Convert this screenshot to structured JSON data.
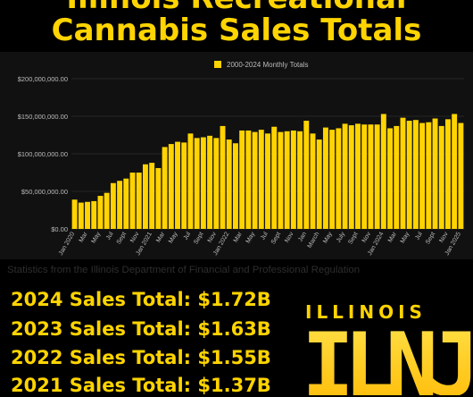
{
  "page": {
    "title_line1": "Illinois Recreational",
    "title_line2": "Cannabis Sales Totals",
    "source_note": "Statistics from the Illinois Department of Financial and Professional Regulation",
    "totals": [
      "2024 Sales Total: $1.72B",
      "2023 Sales Total: $1.63B",
      "2022 Sales Total: $1.55B",
      "2021 Sales Total: $1.37B"
    ],
    "logo": {
      "word": "ILLINOIS",
      "letters": "ILNJ"
    }
  },
  "colors": {
    "accent": "#FFD400",
    "background": "#000000",
    "panel": "#111111",
    "grid": "#3a3a3a",
    "text_muted": "#bbbbbb"
  },
  "chart_data": {
    "type": "bar",
    "legend": {
      "label": "2000-2024 Monthly Totals",
      "position": "top"
    },
    "ylim": [
      0,
      200000000
    ],
    "yticks": [
      {
        "value": 0,
        "label": "$0.00"
      },
      {
        "value": 50000000,
        "label": "$50,000,000.00"
      },
      {
        "value": 100000000,
        "label": "$100,000,000.00"
      },
      {
        "value": 150000000,
        "label": "$150,000,000.00"
      },
      {
        "value": 200000000,
        "label": "$200,000,000.00"
      }
    ],
    "grid": true,
    "categories": [
      "Jan 2020",
      "Feb 2020",
      "Mar 2020",
      "Apr 2020",
      "May 2020",
      "Jun 2020",
      "Jul 2020",
      "Aug 2020",
      "Sep 2020",
      "Oct 2020",
      "Nov 2020",
      "Dec 2020",
      "Jan 2021",
      "Feb 2021",
      "Mar 2021",
      "Apr 2021",
      "May 2021",
      "Jun 2021",
      "Jul 2021",
      "Aug 2021",
      "Sep 2021",
      "Oct 2021",
      "Nov 2021",
      "Dec 2021",
      "Jan 2022",
      "Feb 2022",
      "Mar 2022",
      "Apr 2022",
      "May 2022",
      "Jun 2022",
      "Jul 2022",
      "Aug 2022",
      "Sep 2022",
      "Oct 2022",
      "Nov 2022",
      "Dec 2022",
      "Jan 2023",
      "Feb 2023",
      "Mar 2023",
      "Apr 2023",
      "May 2023",
      "Jun 2023",
      "Jul 2023",
      "Aug 2023",
      "Sep 2023",
      "Oct 2023",
      "Nov 2023",
      "Dec 2023",
      "Jan 2024",
      "Feb 2024",
      "Mar 2024",
      "Apr 2024",
      "May 2024",
      "Jun 2024",
      "Jul 2024",
      "Aug 2024",
      "Sep 2024",
      "Oct 2024",
      "Nov 2024",
      "Dec 2024",
      "Jan 2025"
    ],
    "tick_labels": [
      {
        "index": 0,
        "label": "Jan 2020"
      },
      {
        "index": 2,
        "label": "Mar"
      },
      {
        "index": 4,
        "label": "May"
      },
      {
        "index": 6,
        "label": "Jul"
      },
      {
        "index": 8,
        "label": "Sept"
      },
      {
        "index": 10,
        "label": "Nov"
      },
      {
        "index": 12,
        "label": "Jan 2021"
      },
      {
        "index": 14,
        "label": "Mar"
      },
      {
        "index": 16,
        "label": "May"
      },
      {
        "index": 18,
        "label": "Jul"
      },
      {
        "index": 20,
        "label": "Sept"
      },
      {
        "index": 22,
        "label": "Nov"
      },
      {
        "index": 24,
        "label": "Jan 2022"
      },
      {
        "index": 26,
        "label": "Mar"
      },
      {
        "index": 28,
        "label": "May"
      },
      {
        "index": 30,
        "label": "Jul"
      },
      {
        "index": 32,
        "label": "Sept"
      },
      {
        "index": 34,
        "label": "Nov"
      },
      {
        "index": 36,
        "label": "Jan"
      },
      {
        "index": 38,
        "label": "March"
      },
      {
        "index": 40,
        "label": "May"
      },
      {
        "index": 42,
        "label": "July"
      },
      {
        "index": 44,
        "label": "Sept"
      },
      {
        "index": 46,
        "label": "Nov"
      },
      {
        "index": 48,
        "label": "Jan 2024"
      },
      {
        "index": 50,
        "label": "Mar"
      },
      {
        "index": 52,
        "label": "May"
      },
      {
        "index": 54,
        "label": "Jul"
      },
      {
        "index": 56,
        "label": "Sept"
      },
      {
        "index": 58,
        "label": "Nov"
      },
      {
        "index": 60,
        "label": "Jan 2025"
      }
    ],
    "series": [
      {
        "name": "2000-2024 Monthly Totals",
        "values": [
          39000000,
          35000000,
          36000000,
          37000000,
          44000000,
          48000000,
          61000000,
          64000000,
          67000000,
          75000000,
          75000000,
          86000000,
          88000000,
          81000000,
          109000000,
          113000000,
          116000000,
          115000000,
          127000000,
          121000000,
          122000000,
          124000000,
          121000000,
          137000000,
          119000000,
          114000000,
          131000000,
          131000000,
          129000000,
          132000000,
          127000000,
          136000000,
          129000000,
          130000000,
          131000000,
          130000000,
          144000000,
          127000000,
          119000000,
          135000000,
          132000000,
          134000000,
          140000000,
          138000000,
          140000000,
          139000000,
          139000000,
          139000000,
          153000000,
          134000000,
          137000000,
          148000000,
          144000000,
          145000000,
          141000000,
          142000000,
          147000000,
          137000000,
          146000000,
          153000000,
          141000000
        ]
      }
    ]
  }
}
